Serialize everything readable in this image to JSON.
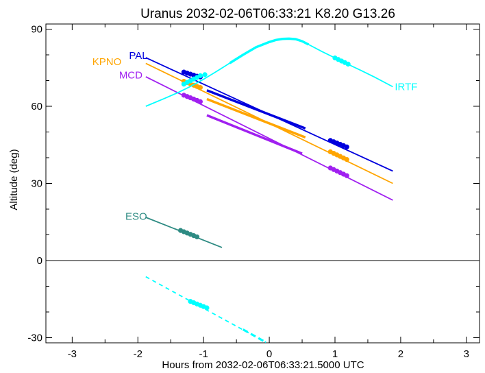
{
  "chart_data": {
    "type": "line",
    "title": "Uranus 2032-02-06T06:33:21  K8.20  G13.26",
    "xlabel": "Hours from 2032-02-06T06:33:21.5000 UTC",
    "ylabel": "Altitude (deg)",
    "xlim": [
      -3.4,
      3.2
    ],
    "ylim": [
      -32,
      92
    ],
    "xticks": [
      -3,
      -2,
      -1,
      0,
      1,
      2,
      3
    ],
    "yticks": [
      -30,
      0,
      30,
      60,
      90
    ],
    "zero_line": true,
    "series": [
      {
        "name": "PAL",
        "color": "#0000dd",
        "line": [
          [
            -1.88,
            78.9
          ],
          [
            1.88,
            34.8
          ]
        ],
        "segments": [
          [
            [
              -0.95,
              66.2
            ],
            [
              0.55,
              51.4
            ]
          ]
        ],
        "dots": [
          [
            -1.3,
            73.3
          ],
          [
            -1.25,
            72.9
          ],
          [
            -1.2,
            72.5
          ],
          [
            -1.15,
            72.1
          ],
          [
            -1.1,
            71.7
          ],
          [
            -1.05,
            71.4
          ],
          [
            0.93,
            46.7
          ],
          [
            0.98,
            46.2
          ],
          [
            1.03,
            45.7
          ],
          [
            1.08,
            45.2
          ],
          [
            1.13,
            44.7
          ],
          [
            1.18,
            44.2
          ]
        ]
      },
      {
        "name": "KPNO",
        "color": "#ffa500",
        "line": [
          [
            -1.88,
            76.7
          ],
          [
            1.88,
            30.0
          ]
        ],
        "segments": [
          [
            [
              -0.95,
              62.8
            ],
            [
              0.55,
              47.9
            ]
          ]
        ],
        "dots": [
          [
            -1.3,
            69.7
          ],
          [
            -1.25,
            69.2
          ],
          [
            -1.2,
            68.7
          ],
          [
            -1.15,
            68.2
          ],
          [
            -1.1,
            67.7
          ],
          [
            -1.05,
            67.3
          ],
          [
            0.93,
            42.3
          ],
          [
            0.98,
            41.7
          ],
          [
            1.03,
            41.1
          ],
          [
            1.08,
            40.5
          ],
          [
            1.13,
            39.9
          ],
          [
            1.18,
            39.3
          ]
        ]
      },
      {
        "name": "MCD",
        "color": "#a020f0",
        "line": [
          [
            -1.88,
            71.5
          ],
          [
            1.88,
            23.5
          ]
        ],
        "segments": [
          [
            [
              -0.95,
              56.5
            ],
            [
              0.5,
              41.6
            ]
          ]
        ],
        "dots": [
          [
            -1.3,
            64.3
          ],
          [
            -1.25,
            63.8
          ],
          [
            -1.2,
            63.3
          ],
          [
            -1.15,
            62.8
          ],
          [
            -1.1,
            62.3
          ],
          [
            -1.05,
            61.8
          ],
          [
            0.93,
            36.0
          ],
          [
            0.98,
            35.4
          ],
          [
            1.03,
            34.8
          ],
          [
            1.08,
            34.2
          ],
          [
            1.13,
            33.6
          ],
          [
            1.18,
            33.0
          ]
        ]
      },
      {
        "name": "ESO",
        "color": "#2e8b83",
        "line": [
          [
            -1.88,
            16.8
          ],
          [
            -0.72,
            5.1
          ]
        ],
        "segments": [],
        "dots": [
          [
            -1.35,
            11.7
          ],
          [
            -1.3,
            11.2
          ],
          [
            -1.25,
            10.7
          ],
          [
            -1.2,
            10.2
          ],
          [
            -1.15,
            9.7
          ],
          [
            -1.1,
            9.2
          ]
        ]
      },
      {
        "name": "IRTF",
        "color": "#00ffff",
        "line": [
          [
            -1.88,
            60.0
          ],
          [
            -1.6,
            63.0
          ],
          [
            -1.4,
            65.2
          ],
          [
            -1.2,
            67.7
          ],
          [
            -1.0,
            70.5
          ],
          [
            -0.8,
            73.6
          ],
          [
            -0.6,
            76.8
          ],
          [
            -0.4,
            80.0
          ],
          [
            -0.2,
            83.0
          ],
          [
            0.0,
            85.0
          ],
          [
            0.1,
            85.8
          ],
          [
            0.2,
            86.2
          ],
          [
            0.3,
            86.3
          ],
          [
            0.4,
            86.1
          ],
          [
            0.5,
            85.3
          ],
          [
            0.6,
            84.0
          ],
          [
            0.8,
            81.3
          ],
          [
            1.0,
            78.8
          ],
          [
            1.2,
            76.3
          ],
          [
            1.4,
            73.9
          ],
          [
            1.6,
            71.4
          ],
          [
            1.88,
            67.6
          ]
        ],
        "segments": [
          [
            [
              -0.6,
              76.8
            ],
            [
              -0.4,
              80.0
            ],
            [
              -0.2,
              83.0
            ],
            [
              0.0,
              85.0
            ],
            [
              0.1,
              85.8
            ],
            [
              0.2,
              86.2
            ],
            [
              0.3,
              86.3
            ],
            [
              0.4,
              86.1
            ],
            [
              0.5,
              85.3
            ],
            [
              0.6,
              84.0
            ]
          ]
        ],
        "dots": [
          [
            -1.3,
            68.6
          ],
          [
            -1.25,
            69.3
          ],
          [
            -1.2,
            69.9
          ],
          [
            -1.15,
            70.6
          ],
          [
            -1.1,
            71.2
          ],
          [
            -1.05,
            71.9
          ],
          [
            -0.98,
            72.3
          ],
          [
            1.0,
            78.8
          ],
          [
            1.05,
            78.2
          ],
          [
            1.1,
            77.6
          ],
          [
            1.15,
            77.0
          ],
          [
            1.2,
            76.4
          ]
        ],
        "below_horizon": {
          "line": [
            [
              -1.88,
              -6.3
            ],
            [
              -0.05,
              -31.8
            ]
          ],
          "segments": [
            [
              [
                -0.4,
                -26.8
              ],
              [
                -0.05,
                -31.8
              ]
            ]
          ],
          "dots": [
            [
              -1.2,
              -15.9
            ],
            [
              -1.15,
              -16.4
            ],
            [
              -1.1,
              -16.9
            ],
            [
              -1.05,
              -17.4
            ],
            [
              -1.0,
              -17.9
            ],
            [
              -0.95,
              -18.4
            ]
          ]
        }
      }
    ]
  }
}
